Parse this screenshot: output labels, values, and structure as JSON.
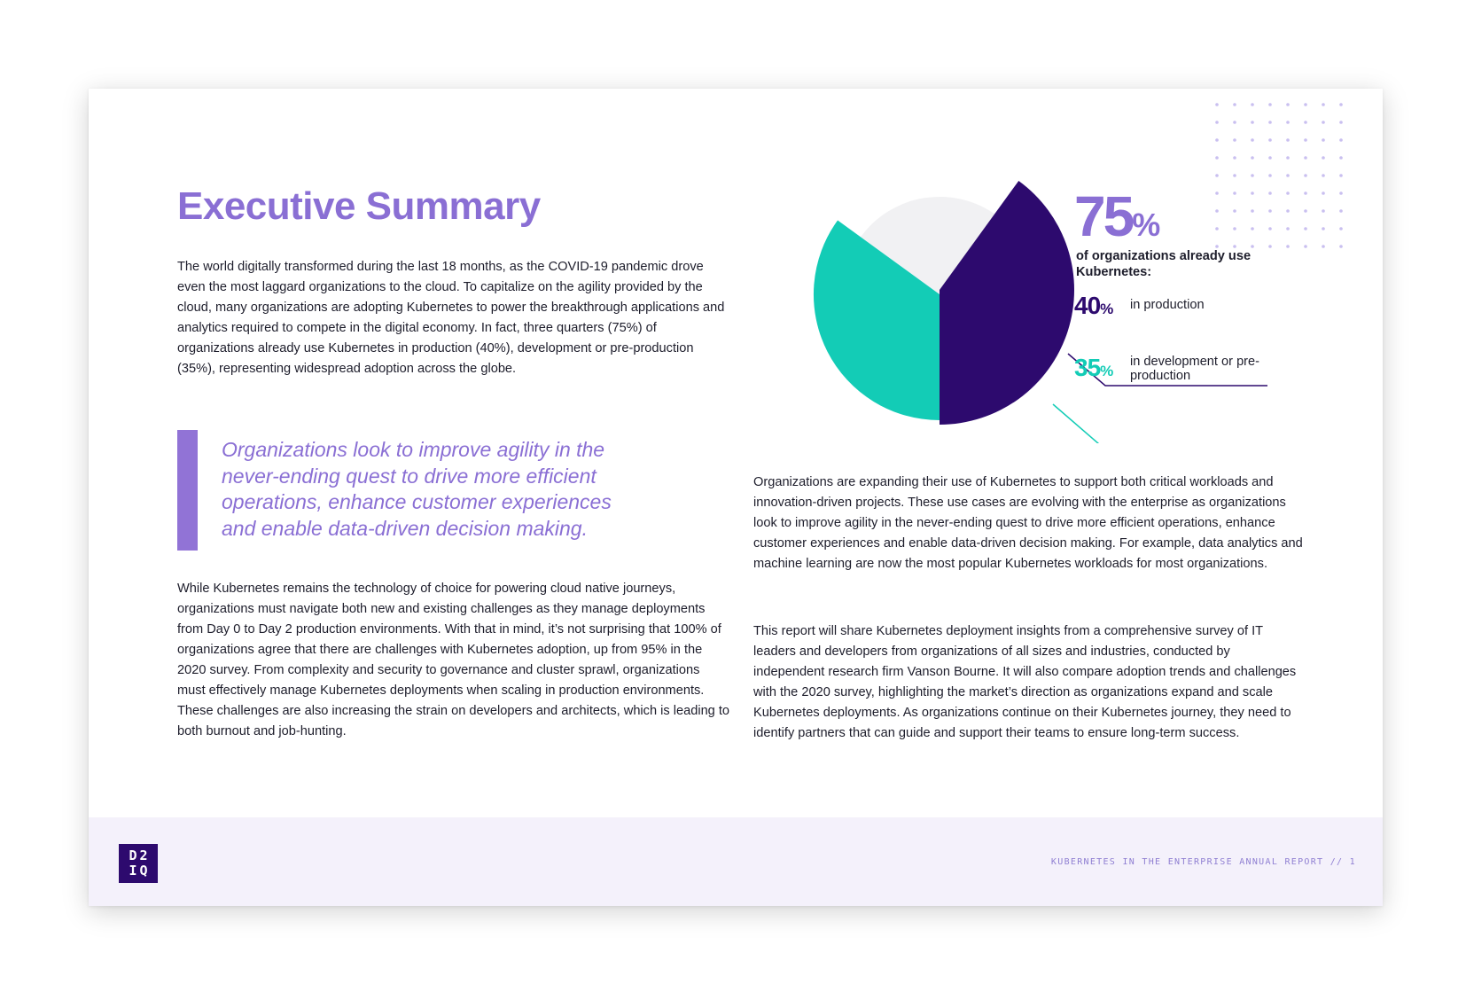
{
  "page": {
    "title": "Executive Summary",
    "paragraph1": "The world digitally transformed during the last 18 months, as the COVID-19 pandemic drove even the most laggard organizations to the cloud. To capitalize on the agility provided by the cloud, many organizations are adopting Kubernetes to power the breakthrough applications and analytics required to compete in the digital economy. In fact, three quarters (75%) of organizations already use Kubernetes in production (40%), development or pre-production (35%), representing widespread adoption across the globe.",
    "quote": "Organizations look to improve agility in the never-ending quest to drive more efficient operations, enhance customer experiences and enable data-driven decision making.",
    "paragraph2": "While Kubernetes remains the technology of choice for powering cloud native journeys, organizations must navigate both new and existing challenges as they manage deployments from Day 0 to Day 2 production environments. With that in mind, it’s not surprising that 100% of organizations agree that there are challenges with Kubernetes adoption, up from 95% in the 2020 survey. From complexity and security to governance and cluster sprawl, organizations must effectively manage Kubernetes deployments when scaling in production environments. These challenges are also increasing the strain on developers and architects, which is leading to both burnout and job-hunting.",
    "paragraph3": "Organizations are expanding their use of Kubernetes to support both critical workloads and innovation-driven projects. These use cases are evolving with the enterprise as organizations look to improve agility in the never-ending quest to drive more efficient operations, enhance customer experiences and enable data-driven decision making. For example, data analytics and machine learning are now the most popular Kubernetes workloads for most organizations.",
    "paragraph4": "This report will share Kubernetes deployment insights from a comprehensive survey of IT leaders and developers from organizations of all sizes and industries, conducted by independent research firm Vanson Bourne. It will also compare adoption trends and challenges with the 2020 survey, highlighting the market’s direction as organizations expand and scale Kubernetes deployments. As organizations continue on their Kubernetes journey, they need to identify partners that can guide and support their teams to ensure long-term success."
  },
  "stats": {
    "total_value": "75",
    "total_unit": "%",
    "total_label": "of organizations already use Kubernetes:",
    "production_value": "40",
    "production_unit": "%",
    "production_label": "in production",
    "development_value": "35",
    "development_unit": "%",
    "development_label": "in development or pre-production"
  },
  "footer": {
    "logo_line1": "D2",
    "logo_line2": "IQ",
    "report_label": "KUBERNETES IN THE ENTERPRISE ANNUAL REPORT // 1"
  },
  "colors": {
    "accent": "#8a6fd4",
    "production": "#2d0a6e",
    "development": "#13ccb6",
    "remainder": "#f1f1f3",
    "footer_bg": "#f4f1fb"
  },
  "chart_data": {
    "type": "pie",
    "slices": [
      {
        "label": "in production",
        "value": 40,
        "color": "#2d0a6e"
      },
      {
        "label": "in development or pre-production",
        "value": 35,
        "color": "#13ccb6"
      },
      {
        "label": "",
        "value": 25,
        "color": "#f1f1f3"
      }
    ]
  }
}
